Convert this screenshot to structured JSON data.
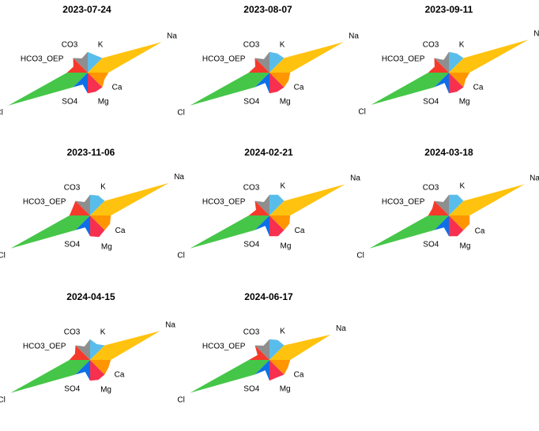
{
  "chart_data": {
    "type": "star-diagram",
    "ions": [
      "Na",
      "Ca",
      "Mg",
      "SO4",
      "Cl",
      "HCO3_OEP",
      "CO3",
      "K"
    ],
    "ion_colors": {
      "Na": "#FFC20E",
      "Ca": "#FF9500",
      "Mg": "#F7304F",
      "SO4": "#0F6FE8",
      "Cl": "#45C648",
      "HCO3_OEP": "#F53A2B",
      "CO3": "#8E8E8E",
      "K": "#59BDEB"
    },
    "panels": [
      {
        "title": "2023-07-24",
        "values": {
          "Na": 0.93,
          "Ca": 0.21,
          "Mg": 0.24,
          "SO4": 0.15,
          "Cl": 1.0,
          "HCO3_OEP": 0.18,
          "CO3": 0.18,
          "K": 0.22
        }
      },
      {
        "title": "2023-08-07",
        "values": {
          "Na": 0.93,
          "Ca": 0.24,
          "Mg": 0.24,
          "SO4": 0.13,
          "Cl": 1.0,
          "HCO3_OEP": 0.18,
          "CO3": 0.17,
          "K": 0.24
        }
      },
      {
        "title": "2023-09-11",
        "values": {
          "Na": 1.0,
          "Ca": 0.21,
          "Mg": 0.24,
          "SO4": 0.13,
          "Cl": 0.98,
          "HCO3_OEP": 0.18,
          "CO3": 0.16,
          "K": 0.24
        }
      },
      {
        "title": "2023-11-06",
        "values": {
          "Na": 0.99,
          "Ca": 0.25,
          "Mg": 0.27,
          "SO4": 0.15,
          "Cl": 1.0,
          "HCO3_OEP": 0.22,
          "CO3": 0.17,
          "K": 0.25
        }
      },
      {
        "title": "2024-02-21",
        "values": {
          "Na": 0.95,
          "Ca": 0.25,
          "Mg": 0.26,
          "SO4": 0.13,
          "Cl": 1.0,
          "HCO3_OEP": 0.17,
          "CO3": 0.17,
          "K": 0.26
        }
      },
      {
        "title": "2024-03-18",
        "values": {
          "Na": 0.95,
          "Ca": 0.26,
          "Mg": 0.26,
          "SO4": 0.15,
          "Cl": 1.0,
          "HCO3_OEP": 0.21,
          "CO3": 0.17,
          "K": 0.26
        }
      },
      {
        "title": "2024-04-15",
        "values": {
          "Na": 0.88,
          "Ca": 0.23,
          "Mg": 0.25,
          "SO4": 0.15,
          "Cl": 1.0,
          "HCO3_OEP": 0.19,
          "CO3": 0.17,
          "K": 0.2
        }
      },
      {
        "title": "2024-06-17",
        "values": {
          "Na": 0.77,
          "Ca": 0.23,
          "Mg": 0.22,
          "SO4": 0.13,
          "Cl": 1.0,
          "HCO3_OEP": 0.15,
          "CO3": 0.18,
          "K": 0.25
        }
      }
    ],
    "grid": false,
    "legend": "none"
  }
}
